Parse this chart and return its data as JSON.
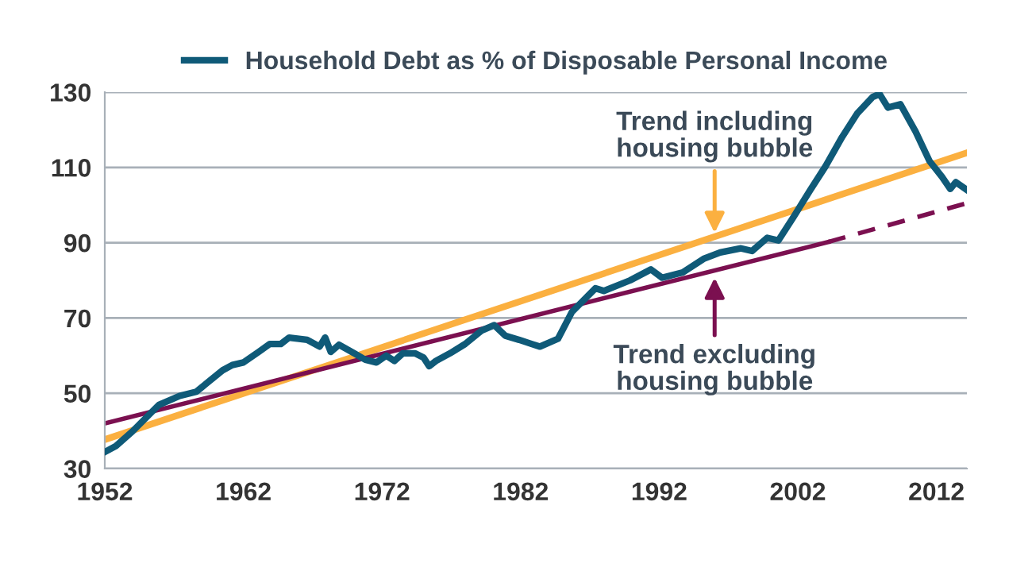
{
  "chart_data": {
    "type": "line",
    "legend": "top",
    "grid": "y",
    "xlim": [
      1952,
      2014.2
    ],
    "xticks": [
      1952,
      1962,
      1972,
      1982,
      1992,
      2002,
      2012
    ],
    "ylim": [
      30,
      130
    ],
    "yticks": [
      30,
      50,
      70,
      90,
      110,
      130
    ],
    "series": [
      {
        "name": "Household Debt as % of Disposable Personal Income",
        "color": "#0f5a78",
        "x": [
          1952.1,
          1952.8,
          1954.0,
          1955.9,
          1957.4,
          1958.6,
          1959.3,
          1960.5,
          1961.2,
          1962.0,
          1963.1,
          1963.9,
          1964.7,
          1965.3,
          1966.6,
          1967.5,
          1967.9,
          1968.3,
          1968.9,
          1970.0,
          1970.8,
          1971.6,
          1972.3,
          1972.9,
          1973.5,
          1974.4,
          1975.0,
          1975.4,
          1975.9,
          1976.9,
          1978.0,
          1979.2,
          1980.1,
          1980.9,
          1981.9,
          1982.8,
          1983.4,
          1984.7,
          1985.7,
          1987.4,
          1988.0,
          1989.9,
          1991.4,
          1992.2,
          1993.7,
          1995.2,
          1996.4,
          1997.9,
          1998.7,
          1999.8,
          2000.6,
          2001.7,
          2002.9,
          2004.0,
          2005.2,
          2006.3,
          2007.4,
          2007.9,
          2008.5,
          2009.4,
          2010.5,
          2011.5,
          2012.4,
          2013.0,
          2013.4,
          2014.2
        ],
        "values": [
          34.6,
          36.0,
          39.9,
          46.9,
          49.3,
          50.4,
          52.5,
          56.1,
          57.5,
          58.2,
          61.0,
          63.1,
          63.1,
          64.8,
          64.2,
          62.4,
          64.8,
          61.0,
          62.9,
          60.6,
          58.9,
          58.2,
          60.0,
          58.6,
          60.6,
          60.6,
          59.5,
          57.2,
          58.6,
          60.6,
          63.1,
          66.7,
          68.1,
          65.3,
          64.2,
          63.1,
          62.4,
          64.5,
          71.6,
          77.9,
          77.2,
          80.0,
          82.9,
          80.7,
          82.1,
          85.7,
          87.4,
          88.5,
          87.8,
          91.3,
          90.6,
          96.9,
          104.0,
          110.3,
          118.1,
          124.4,
          128.7,
          129.5,
          125.9,
          126.8,
          119.5,
          111.7,
          107.5,
          104.3,
          106.1,
          104.0
        ]
      },
      {
        "type": "line",
        "color": "#fbb040",
        "x": [
          1952,
          2014.2
        ],
        "values": [
          37.7,
          113.9
        ]
      },
      {
        "type": "line",
        "color": "#7b1050",
        "x": [
          1952,
          2004.2
        ],
        "values": [
          42.0,
          90.2
        ]
      },
      {
        "type": "line",
        "color": "#7b1050",
        "line_style": "dashed",
        "x": [
          2004.2,
          2014.2
        ],
        "values": [
          90.2,
          100.5
        ]
      }
    ],
    "annotations": [
      {
        "text": "Trend including\nhousing bubble",
        "x": 1996.0,
        "y": 92.6
      },
      {
        "text": "Trend excluding\nhousing bubble",
        "x": 1996.0,
        "y": 80.7
      }
    ]
  }
}
